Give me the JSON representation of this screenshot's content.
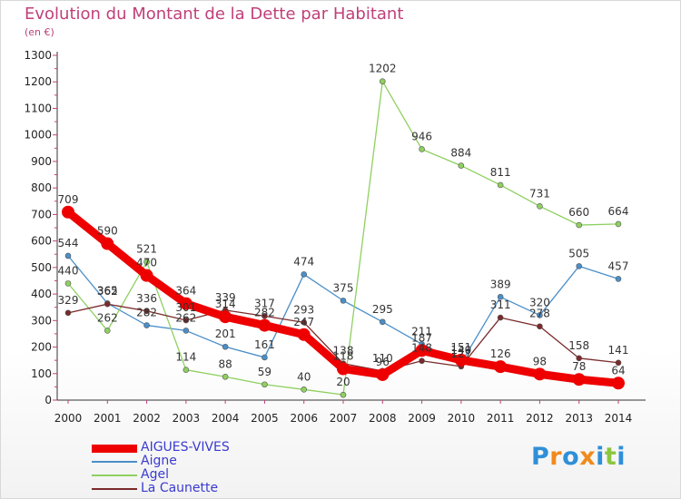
{
  "header": {
    "title": "Evolution du Montant de la Dette par Habitant",
    "subtitle": "(en €)"
  },
  "logo": {
    "letters": [
      "P",
      "r",
      "o",
      "x",
      "i",
      "t",
      "i"
    ],
    "colors": [
      "#2f8fd8",
      "#f08a1c",
      "#2f8fd8",
      "#f08a1c",
      "#2f8fd8",
      "#8cc63f",
      "#2f8fd8"
    ]
  },
  "chart_data": {
    "type": "line",
    "title": "Evolution du Montant de la Dette par Habitant",
    "subtitle": "(en €)",
    "xlabel": "",
    "ylabel": "",
    "x": [
      "2000",
      "2001",
      "2002",
      "2003",
      "2004",
      "2005",
      "2006",
      "2007",
      "2008",
      "2009",
      "2010",
      "2011",
      "2012",
      "2013",
      "2014"
    ],
    "ylim": [
      0,
      1300
    ],
    "yticks": [
      0,
      100,
      200,
      300,
      400,
      500,
      600,
      700,
      800,
      900,
      1000,
      1100,
      1200,
      1300
    ],
    "grid": false,
    "legend_position": "bottom-left",
    "series": [
      {
        "name": "AIGUES-VIVES",
        "color": "#ee0000",
        "values": [
          709,
          590,
          470,
          364,
          314,
          282,
          247,
          118,
          96,
          187,
          151,
          126,
          98,
          78,
          64
        ],
        "show_labels": [
          true,
          true,
          true,
          true,
          true,
          true,
          true,
          true,
          true,
          true,
          true,
          true,
          true,
          true,
          true
        ]
      },
      {
        "name": "Aigne",
        "color": "#4a8fc8",
        "values": [
          544,
          365,
          282,
          262,
          201,
          161,
          474,
          375,
          295,
          211,
          140,
          389,
          320,
          505,
          457
        ],
        "show_labels": [
          true,
          true,
          true,
          true,
          true,
          true,
          true,
          true,
          true,
          true,
          true,
          true,
          true,
          true,
          true
        ]
      },
      {
        "name": "Agel",
        "color": "#8fd060",
        "values": [
          440,
          262,
          521,
          114,
          88,
          59,
          40,
          20,
          1202,
          946,
          884,
          811,
          731,
          660,
          664
        ],
        "show_labels": [
          true,
          true,
          true,
          true,
          true,
          true,
          true,
          true,
          true,
          true,
          true,
          true,
          true,
          true,
          true
        ]
      },
      {
        "name": "La Caunette",
        "color": "#7a2a2a",
        "values": [
          329,
          362,
          336,
          301,
          339,
          317,
          293,
          138,
          110,
          148,
          127,
          311,
          278,
          158,
          141
        ],
        "show_labels": [
          true,
          true,
          true,
          true,
          true,
          true,
          true,
          true,
          true,
          true,
          true,
          true,
          true,
          true,
          true
        ]
      }
    ]
  }
}
